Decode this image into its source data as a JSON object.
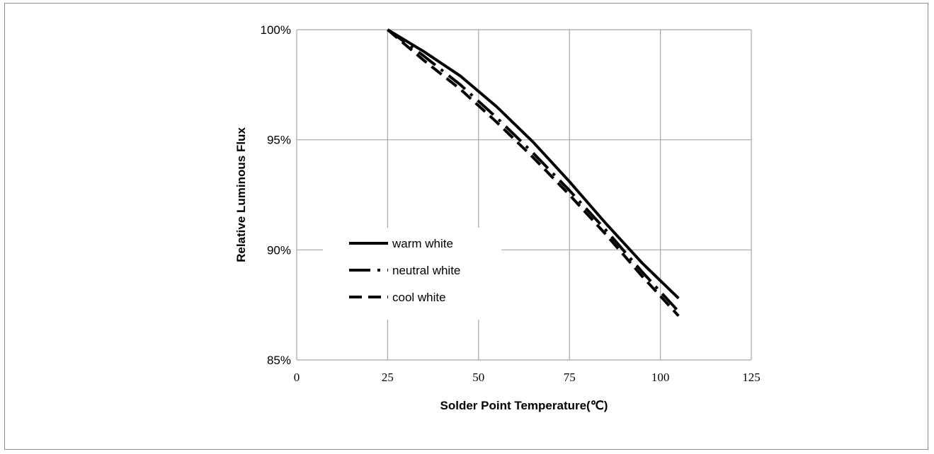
{
  "chart_data": {
    "type": "line",
    "title": "",
    "xlabel": "Solder Point Temperature(℃)",
    "ylabel": "Relative Luminous Flux",
    "xlim": [
      0,
      125
    ],
    "ylim": [
      85,
      100
    ],
    "x_ticks": [
      "0",
      "25",
      "50",
      "75",
      "100",
      "125"
    ],
    "y_ticks": [
      "85%",
      "90%",
      "95%",
      "100%"
    ],
    "x_tick_values": [
      0,
      25,
      50,
      75,
      100,
      125
    ],
    "y_tick_values": [
      85,
      90,
      95,
      100
    ],
    "grid": true,
    "legend_position": "left-center",
    "series": [
      {
        "name": "warm white",
        "style": "solid",
        "x": [
          25,
          35,
          45,
          55,
          65,
          75,
          85,
          95,
          105
        ],
        "y": [
          100,
          99.0,
          97.9,
          96.5,
          94.9,
          93.1,
          91.2,
          89.4,
          87.8
        ]
      },
      {
        "name": "neutral white",
        "style": "dash-dot",
        "x": [
          25,
          35,
          45,
          55,
          65,
          75,
          85,
          95,
          105
        ],
        "y": [
          100,
          98.8,
          97.5,
          96.0,
          94.4,
          92.7,
          90.9,
          89.0,
          87.2
        ]
      },
      {
        "name": "cool white",
        "style": "dashed",
        "x": [
          25,
          35,
          45,
          55,
          65,
          75,
          85,
          95,
          105
        ],
        "y": [
          100,
          98.6,
          97.3,
          95.8,
          94.2,
          92.5,
          90.7,
          88.8,
          87.0
        ]
      }
    ]
  }
}
